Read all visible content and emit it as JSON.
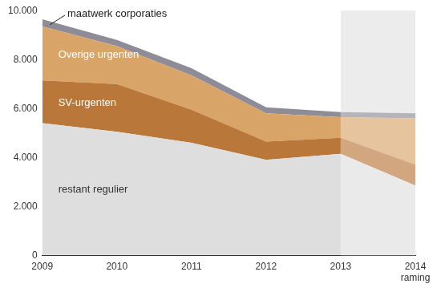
{
  "chart_data": {
    "type": "area",
    "stacked": true,
    "grid": true,
    "categories": [
      "2009",
      "2010",
      "2011",
      "2012",
      "2013",
      "2014 raming"
    ],
    "series": [
      {
        "name": "restant regulier",
        "color": "#dedede",
        "values": [
          5400,
          5050,
          4600,
          3900,
          4150,
          2850
        ]
      },
      {
        "name": "SV-urgenten",
        "color": "#b9773a",
        "values": [
          1750,
          1950,
          1350,
          750,
          650,
          850
        ]
      },
      {
        "name": "Overige urgenten",
        "color": "#d9a468",
        "values": [
          2200,
          1550,
          1400,
          1150,
          850,
          1900
        ]
      },
      {
        "name": "maatwerk corporaties",
        "color": "#8e8c97",
        "values": [
          300,
          250,
          300,
          250,
          200,
          200
        ]
      }
    ],
    "ylim": [
      0,
      10000
    ],
    "yticks": [
      0,
      {
        "value": 2000,
        "label": "2.000"
      },
      {
        "value": 4000,
        "label": "4.000"
      },
      {
        "value": 6000,
        "label": "6.000"
      },
      {
        "value": 8000,
        "label": "8.000"
      },
      {
        "value": 10000,
        "label": "10.000"
      }
    ]
  }
}
